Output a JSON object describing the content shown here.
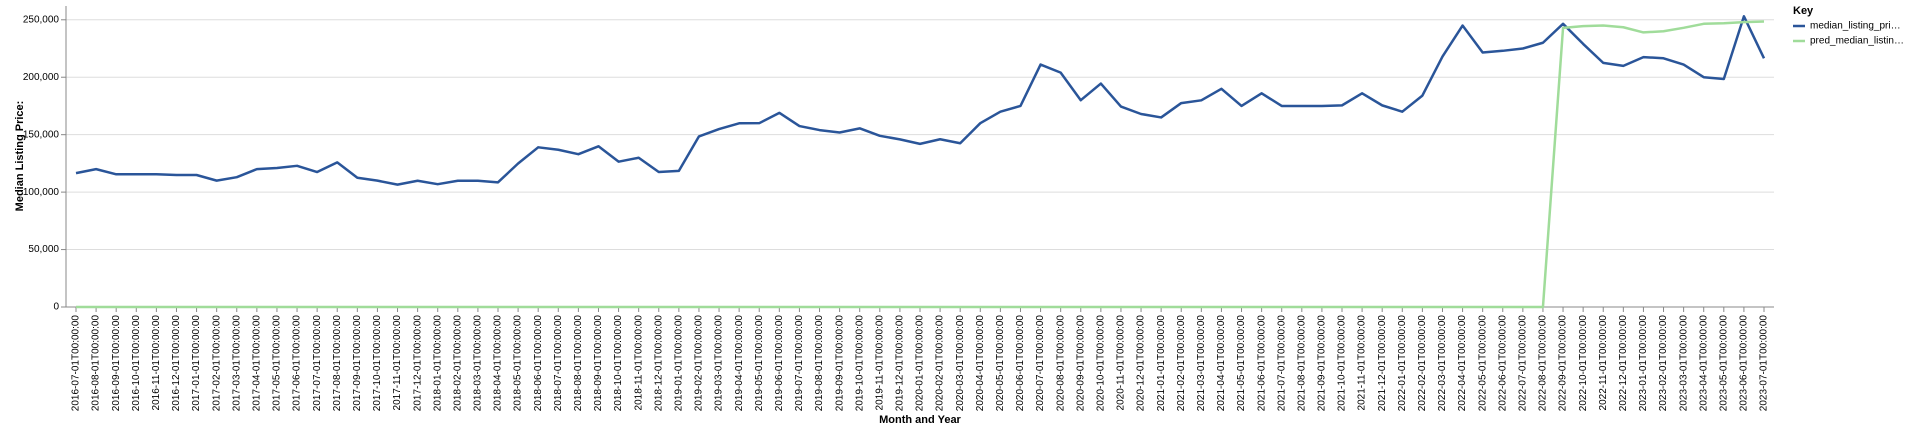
{
  "chart_data": {
    "type": "line",
    "x_label": "Month and Year",
    "y_label": "Median Listing Price:",
    "legend_title": "Key",
    "legend_position": "right",
    "grid": true,
    "categories": [
      "2016-07-01T00:00:00",
      "2016-08-01T00:00:00",
      "2016-09-01T00:00:00",
      "2016-10-01T00:00:00",
      "2016-11-01T00:00:00",
      "2016-12-01T00:00:00",
      "2017-01-01T00:00:00",
      "2017-02-01T00:00:00",
      "2017-03-01T00:00:00",
      "2017-04-01T00:00:00",
      "2017-05-01T00:00:00",
      "2017-06-01T00:00:00",
      "2017-07-01T00:00:00",
      "2017-08-01T00:00:00",
      "2017-09-01T00:00:00",
      "2017-10-01T00:00:00",
      "2017-11-01T00:00:00",
      "2017-12-01T00:00:00",
      "2018-01-01T00:00:00",
      "2018-02-01T00:00:00",
      "2018-03-01T00:00:00",
      "2018-04-01T00:00:00",
      "2018-05-01T00:00:00",
      "2018-06-01T00:00:00",
      "2018-07-01T00:00:00",
      "2018-08-01T00:00:00",
      "2018-09-01T00:00:00",
      "2018-10-01T00:00:00",
      "2018-11-01T00:00:00",
      "2018-12-01T00:00:00",
      "2019-01-01T00:00:00",
      "2019-02-01T00:00:00",
      "2019-03-01T00:00:00",
      "2019-04-01T00:00:00",
      "2019-05-01T00:00:00",
      "2019-06-01T00:00:00",
      "2019-07-01T00:00:00",
      "2019-08-01T00:00:00",
      "2019-09-01T00:00:00",
      "2019-10-01T00:00:00",
      "2019-11-01T00:00:00",
      "2019-12-01T00:00:00",
      "2020-01-01T00:00:00",
      "2020-02-01T00:00:00",
      "2020-03-01T00:00:00",
      "2020-04-01T00:00:00",
      "2020-05-01T00:00:00",
      "2020-06-01T00:00:00",
      "2020-07-01T00:00:00",
      "2020-08-01T00:00:00",
      "2020-09-01T00:00:00",
      "2020-10-01T00:00:00",
      "2020-11-01T00:00:00",
      "2020-12-01T00:00:00",
      "2021-01-01T00:00:00",
      "2021-02-01T00:00:00",
      "2021-03-01T00:00:00",
      "2021-04-01T00:00:00",
      "2021-05-01T00:00:00",
      "2021-06-01T00:00:00",
      "2021-07-01T00:00:00",
      "2021-08-01T00:00:00",
      "2021-09-01T00:00:00",
      "2021-10-01T00:00:00",
      "2021-11-01T00:00:00",
      "2021-12-01T00:00:00",
      "2022-01-01T00:00:00",
      "2022-02-01T00:00:00",
      "2022-03-01T00:00:00",
      "2022-04-01T00:00:00",
      "2022-05-01T00:00:00",
      "2022-06-01T00:00:00",
      "2022-07-01T00:00:00",
      "2022-08-01T00:00:00",
      "2022-09-01T00:00:00",
      "2022-10-01T00:00:00",
      "2022-11-01T00:00:00",
      "2022-12-01T00:00:00",
      "2023-01-01T00:00:00",
      "2023-02-01T00:00:00",
      "2023-03-01T00:00:00",
      "2023-04-01T00:00:00",
      "2023-05-01T00:00:00",
      "2023-06-01T00:00:00",
      "2023-07-01T00:00:00"
    ],
    "series": [
      {
        "name": "median_listing_pri…",
        "color": "#2a5599",
        "values": [
          116500,
          120000,
          115500,
          115500,
          115500,
          114900,
          114900,
          110000,
          113000,
          120000,
          121000,
          122900,
          117500,
          125900,
          112500,
          110000,
          106500,
          109900,
          106900,
          109900,
          109900,
          108500,
          124900,
          139000,
          136900,
          133000,
          139900,
          126500,
          129900,
          117500,
          118500,
          148500,
          154900,
          159900,
          160000,
          169000,
          157500,
          154000,
          151900,
          155500,
          149000,
          145900,
          142000,
          146000,
          142500,
          160000,
          170000,
          175000,
          211000,
          204000,
          180000,
          194500,
          174500,
          168000,
          165000,
          177500,
          179900,
          189900,
          175000,
          186000,
          175000,
          175000,
          175000,
          175500,
          186000,
          175500,
          170000,
          184000,
          218000,
          245000,
          221500,
          223000,
          225000,
          230000,
          246500,
          229000,
          212500,
          209900,
          217500,
          216500,
          211000,
          200000,
          198500,
          253000,
          216500
        ]
      },
      {
        "name": "pred_median_listin…",
        "color": "#a0dc9a",
        "values": [
          0,
          0,
          0,
          0,
          0,
          0,
          0,
          0,
          0,
          0,
          0,
          0,
          0,
          0,
          0,
          0,
          0,
          0,
          0,
          0,
          0,
          0,
          0,
          0,
          0,
          0,
          0,
          0,
          0,
          0,
          0,
          0,
          0,
          0,
          0,
          0,
          0,
          0,
          0,
          0,
          0,
          0,
          0,
          0,
          0,
          0,
          0,
          0,
          0,
          0,
          0,
          0,
          0,
          0,
          0,
          0,
          0,
          0,
          0,
          0,
          0,
          0,
          0,
          0,
          0,
          0,
          0,
          0,
          0,
          0,
          0,
          0,
          0,
          0,
          243000,
          244500,
          245000,
          243500,
          239000,
          240000,
          243000,
          246500,
          247000,
          248000,
          248500
        ]
      }
    ],
    "ylim": [
      0,
      262000
    ],
    "yticks": [
      0,
      {
        "value": 50000,
        "label": "50,000"
      },
      {
        "value": 100000,
        "label": "100,000"
      },
      {
        "value": 150000,
        "label": "150,000"
      },
      {
        "value": 200000,
        "label": "200,000"
      },
      {
        "value": 250000,
        "label": "250,000"
      }
    ]
  }
}
